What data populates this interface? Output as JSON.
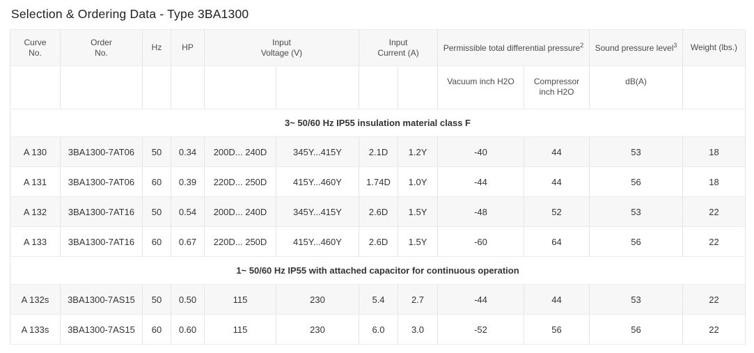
{
  "title": "Selection & Ordering Data - Type 3BA1300",
  "table": {
    "header": {
      "curve_no": "Curve\nNo.",
      "order_no": "Order\nNo.",
      "hz": "Hz",
      "hp": "HP",
      "input_voltage": "Input\nVoltage (V)",
      "input_current": "Input\nCurrent (A)",
      "pressure_label": "Permissible total differential pressure",
      "pressure_sup": "2",
      "sound_label": "Sound pressure level",
      "sound_sup": "3",
      "weight": "Weight (lbs.)",
      "vacuum": "Vacuum inch H2O",
      "compressor": "Compressor\ninch H2O",
      "db": "dB(A)"
    },
    "sections": [
      {
        "heading": "3~ 50/60 Hz IP55 insulation material class F",
        "rows": [
          [
            "A 130",
            "3BA1300-7AT06",
            "50",
            "0.34",
            "200D... 240D",
            "345Y...415Y",
            "2.1D",
            "1.2Y",
            "-40",
            "44",
            "53",
            "18"
          ],
          [
            "A 131",
            "3BA1300-7AT06",
            "60",
            "0.39",
            "220D... 250D",
            "415Y...460Y",
            "1.74D",
            "1.0Y",
            "-44",
            "44",
            "56",
            "18"
          ],
          [
            "A 132",
            "3BA1300-7AT16",
            "50",
            "0.54",
            "200D... 240D",
            "345Y...415Y",
            "2.6D",
            "1.5Y",
            "-48",
            "52",
            "53",
            "22"
          ],
          [
            "A 133",
            "3BA1300-7AT16",
            "60",
            "0.67",
            "220D... 250D",
            "415Y...460Y",
            "2.6D",
            "1.5Y",
            "-60",
            "64",
            "56",
            "22"
          ]
        ]
      },
      {
        "heading": "1~ 50/60 Hz IP55 with attached capacitor for continuous operation",
        "rows": [
          [
            "A 132s",
            "3BA1300-7AS15",
            "50",
            "0.50",
            "115",
            "230",
            "5.4",
            "2.7",
            "-44",
            "44",
            "53",
            "22"
          ],
          [
            "A 133s",
            "3BA1300-7AS15",
            "60",
            "0.60",
            "115",
            "230",
            "6.0",
            "3.0",
            "-52",
            "56",
            "56",
            "22"
          ]
        ]
      }
    ]
  },
  "colors": {
    "row_alt_bg": "#f7f7f7",
    "header_bg": "#f7f7f7",
    "border": "#e4e4e4",
    "text": "#333333"
  }
}
